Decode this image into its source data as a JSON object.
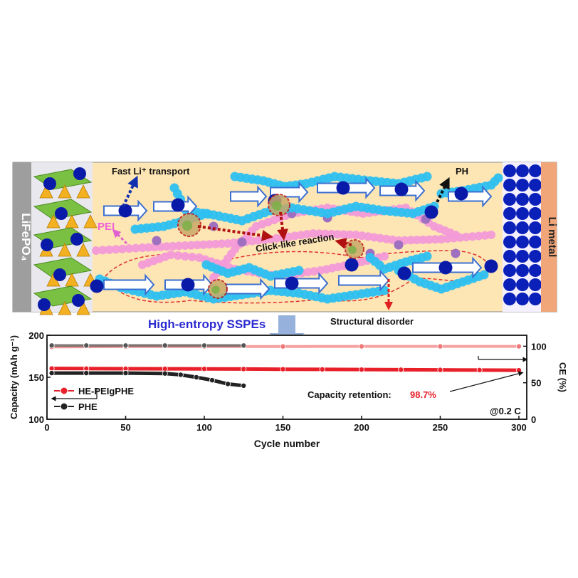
{
  "schematic": {
    "cathode_label": "LiFePO₄",
    "anode_label": "Li metal",
    "fast_transport": "Fast Li⁺ transport",
    "pei_label": "PEI",
    "ph_label": "PH",
    "click_label": "Click-like reaction",
    "disorder_label": "Structural disorder",
    "banner": "High-entropy SSPEs"
  },
  "chart_data": {
    "type": "line",
    "xlabel": "Cycle number",
    "ylabel_left": "Capacity (mAh g⁻¹)",
    "ylabel_right": "CE (%)",
    "xlim": [
      0,
      305
    ],
    "ylim_left": [
      100,
      200
    ],
    "ylim_right": [
      0,
      115
    ],
    "x_ticks": [
      0,
      50,
      100,
      150,
      200,
      250,
      300
    ],
    "y_ticks_left": [
      100,
      150,
      200
    ],
    "y_ticks_right": [
      0,
      50,
      100
    ],
    "legend_position": "left",
    "annotation_condition": "@0.2 C",
    "annotation_retention_label": "Capacity retention:",
    "annotation_retention_value": "98.7%",
    "series": [
      {
        "name": "HE-PEIgPHE",
        "color": "#e8202a",
        "axis": "left",
        "x": [
          3,
          25,
          50,
          75,
          100,
          125,
          150,
          175,
          200,
          225,
          250,
          275,
          300
        ],
        "y": [
          160.5,
          160.3,
          160.2,
          160.1,
          160.0,
          159.8,
          159.6,
          159.4,
          159.2,
          159.0,
          158.8,
          158.6,
          158.4
        ]
      },
      {
        "name": "PHE",
        "color": "#222222",
        "axis": "left",
        "x": [
          3,
          25,
          50,
          75,
          85,
          95,
          105,
          115,
          125
        ],
        "y": [
          155,
          155,
          155,
          154.5,
          153,
          150,
          146.5,
          142,
          140
        ]
      },
      {
        "name": "HE-PEIgPHE CE",
        "color": "#f07878",
        "axis": "right",
        "x": [
          3,
          50,
          100,
          150,
          200,
          250,
          300
        ],
        "y": [
          99.0,
          99.6,
          99.7,
          99.7,
          99.8,
          99.8,
          99.8
        ]
      },
      {
        "name": "PHE CE",
        "color": "#555555",
        "axis": "right",
        "x": [
          3,
          25,
          50,
          75,
          100,
          125
        ],
        "y": [
          101,
          101,
          101,
          101,
          101,
          101
        ]
      }
    ]
  },
  "colors": {
    "electrolyte_bg": "#fde5b4",
    "cathode_gray": "#9e9e9e",
    "anode_orange": "#f0a678",
    "li_ion": "#0a1aa8",
    "chain_cyan": "#2ec0f0",
    "pei_pink": "#f39ad8",
    "purple": "#a070c0",
    "arrow_red": "#b01010"
  }
}
